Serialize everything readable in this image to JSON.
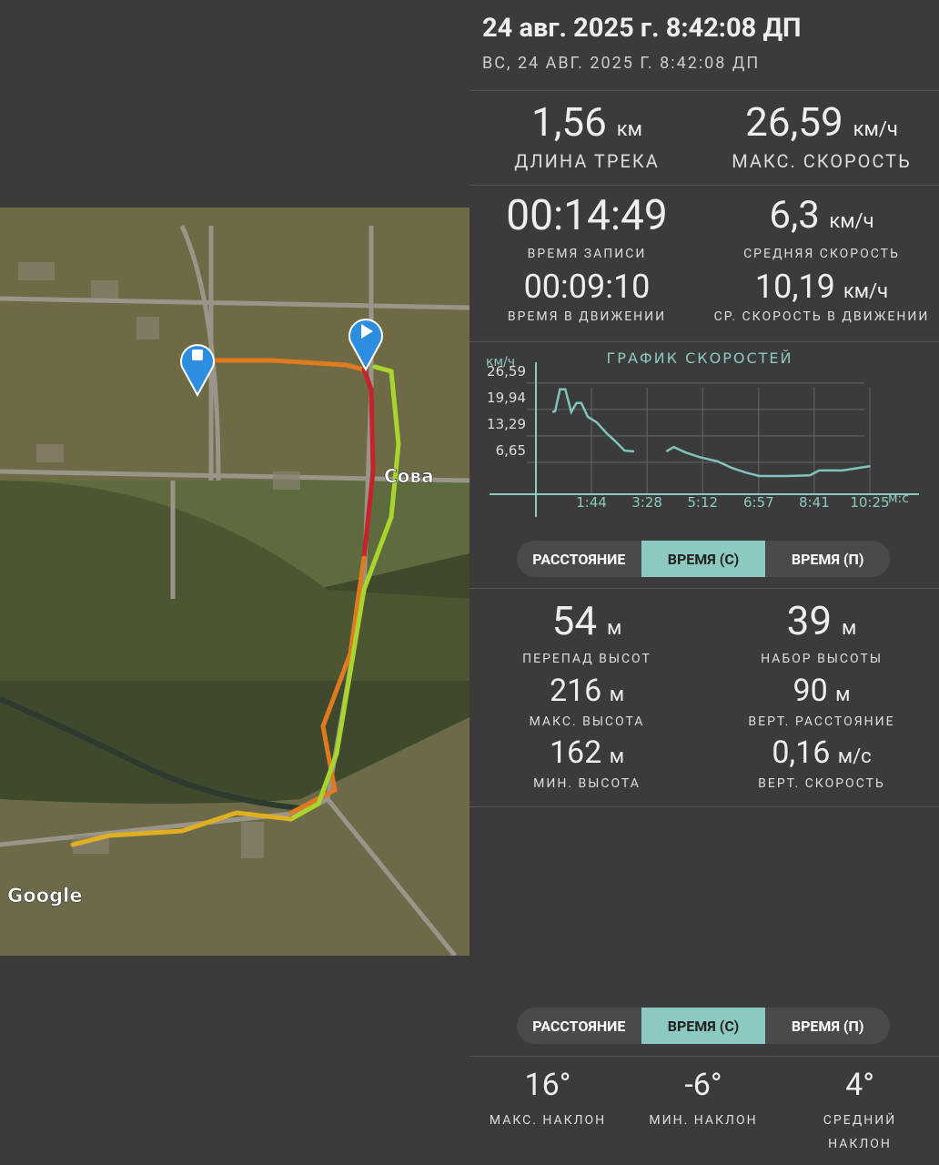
{
  "header": {
    "title": "24 авг. 2025 г. 8:42:08 ДП",
    "subtitle": "ВС, 24 АВГ. 2025 Г. 8:42:08 ДП"
  },
  "map": {
    "place_label": "Сова",
    "attribution": "Google"
  },
  "summary": [
    {
      "value": "1,56",
      "unit": "км",
      "label": "ДЛИНА ТРЕКА"
    },
    {
      "value": "26,59",
      "unit": "км/ч",
      "label": "МАКС. СКОРОСТЬ"
    }
  ],
  "time_stats": [
    {
      "value": "00:14:49",
      "label": "ВРЕМЯ ЗАПИСИ"
    },
    {
      "value": "6,3",
      "unit": "км/ч",
      "label": "СРЕДНЯЯ СКОРОСТЬ"
    },
    {
      "value": "00:09:10",
      "label": "ВРЕМЯ В ДВИЖЕНИИ"
    },
    {
      "value": "10,19",
      "unit": "км/ч",
      "label": "СР. СКОРОСТЬ В ДВИЖЕНИИ"
    }
  ],
  "speed_chart": {
    "type": "line",
    "title": "ГРАФИК СКОРОСТЕЙ",
    "y_label": "км/ч",
    "x_label": "м:с",
    "x": [
      31,
      36,
      45,
      55,
      66,
      76,
      85,
      97,
      114,
      132,
      149,
      166,
      184,
      214,
      244,
      258,
      279,
      305,
      340,
      366,
      392,
      418,
      470,
      513,
      530,
      574,
      626
    ],
    "series": [
      {
        "color": "#7fc4bd",
        "values": [
          19.3,
          19.5,
          25.0,
          25.0,
          19.3,
          21.6,
          21.6,
          18.1,
          16.7,
          14.0,
          11.9,
          9.6,
          9.4,
          null,
          9.4,
          10.5,
          9.2,
          8.0,
          6.9,
          5.3,
          4.1,
          3.2,
          3.2,
          3.4,
          4.6,
          4.6,
          5.7
        ]
      }
    ],
    "xlim": [
      0,
      700
    ],
    "ylim": [
      0,
      30
    ],
    "xticks": [
      {
        "value": 104,
        "label": "1:44"
      },
      {
        "value": 208,
        "label": "3:28"
      },
      {
        "value": 312,
        "label": "5:12"
      },
      {
        "value": 417,
        "label": "6:57"
      },
      {
        "value": 521,
        "label": "8:41"
      },
      {
        "value": 625,
        "label": "10:25"
      }
    ],
    "yticks": [
      {
        "value": 6.65,
        "label": "6,65"
      },
      {
        "value": 13.29,
        "label": "13,29"
      },
      {
        "value": 19.94,
        "label": "19,94"
      },
      {
        "value": 26.59,
        "label": "26,59"
      }
    ],
    "grid": true
  },
  "tabs_top": {
    "items": [
      "РАССТОЯНИЕ",
      "ВРЕМЯ (С)",
      "ВРЕМЯ (П)"
    ],
    "active": 1
  },
  "elevation": [
    {
      "value": "54",
      "unit": "м",
      "label": "ПЕРЕПАД ВЫСОТ"
    },
    {
      "value": "39",
      "unit": "м",
      "label": "НАБОР ВЫСОТЫ"
    },
    {
      "value": "216",
      "unit": "м",
      "label": "МАКС. ВЫСОТА"
    },
    {
      "value": "90",
      "unit": "м",
      "label": "ВЕРТ. РАССТОЯНИЕ"
    },
    {
      "value": "162",
      "unit": "м",
      "label": "МИН. ВЫСОТА"
    },
    {
      "value": "0,16",
      "unit": "м/с",
      "label": "ВЕРТ. СКОРОСТЬ"
    }
  ],
  "tabs_bottom": {
    "items": [
      "РАССТОЯНИЕ",
      "ВРЕМЯ (С)",
      "ВРЕМЯ (П)"
    ],
    "active": 1
  },
  "slope": [
    {
      "value": "16°",
      "label": "МАКС. НАКЛОН"
    },
    {
      "value": "-6°",
      "label": "МИН. НАКЛОН"
    },
    {
      "value": "4°",
      "label": "СРЕДНИЙ НАКЛОН"
    }
  ]
}
